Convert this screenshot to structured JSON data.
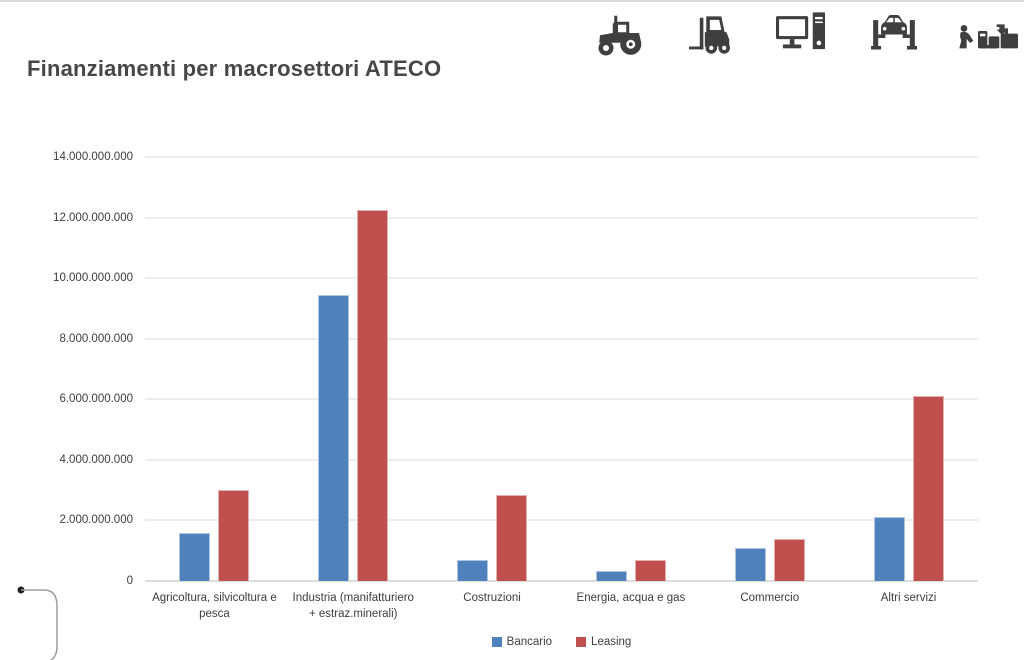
{
  "header": {
    "title": "Finanziamenti per macrosettori ATECO"
  },
  "icons": [
    {
      "name": "tractor-icon"
    },
    {
      "name": "forklift-icon"
    },
    {
      "name": "desktop-computer-icon"
    },
    {
      "name": "car-lift-icon"
    },
    {
      "name": "workers-equipment-icon"
    }
  ],
  "chart_data": {
    "type": "bar",
    "title": "Finanziamenti per macrosettori ATECO",
    "categories": [
      "Agricoltura, silvicoltura e pesca",
      "Industria (manifatturiero + estraz.minerali)",
      "Costruzioni",
      "Energia, acqua e gas",
      "Commercio",
      "Altri servizi"
    ],
    "series": [
      {
        "name": "Bancario",
        "color": "#4F81BD",
        "values": [
          1600000000,
          9450000000,
          700000000,
          320000000,
          1100000000,
          2130000000
        ]
      },
      {
        "name": "Leasing",
        "color": "#C0504D",
        "values": [
          3000000000,
          12250000000,
          2850000000,
          700000000,
          1380000000,
          6100000000
        ]
      }
    ],
    "ylim": [
      0,
      14000000000
    ],
    "y_ticks": [
      {
        "value": 14000000000,
        "label": "14.000.000.000"
      },
      {
        "value": 12000000000,
        "label": "12.000.000.000"
      },
      {
        "value": 10000000000,
        "label": "10.000.000.000"
      },
      {
        "value": 8000000000,
        "label": "8.000.000.000"
      },
      {
        "value": 6000000000,
        "label": "6.000.000.000"
      },
      {
        "value": 4000000000,
        "label": "4.000.000.000"
      },
      {
        "value": 2000000000,
        "label": "2.000.000.000"
      },
      {
        "value": 0,
        "label": "0"
      }
    ],
    "grid": true,
    "legend_position": "bottom",
    "xlabel": "",
    "ylabel": ""
  }
}
